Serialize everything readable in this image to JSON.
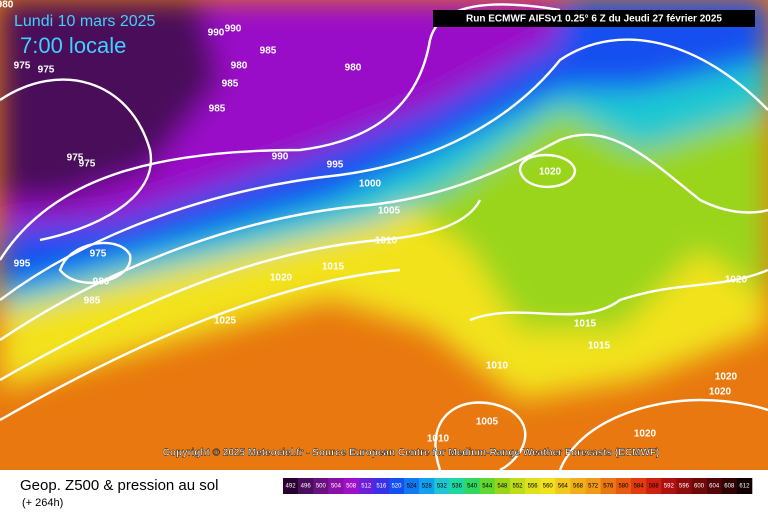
{
  "header": {
    "date": "Lundi 10 mars 2025",
    "time": "7:00 locale",
    "run": "Run ECMWF AIFSv1 0.25° 6 Z du Jeudi 27 février 2025"
  },
  "copyright": "Copyright © 2025 Meteociel.fr - Source European Centre for Medium-Range Weather Forecasts (ECMWF)",
  "footer": {
    "title": "Geop. Z500 & pression au sol",
    "lead": "(+ 264h)"
  },
  "isobar_labels": [
    "980",
    "990",
    "990",
    "985",
    "975",
    "975",
    "980",
    "985",
    "985",
    "980",
    "975",
    "975",
    "990",
    "995",
    "1000",
    "1005",
    "1010",
    "1015",
    "1020",
    "1025",
    "995",
    "975",
    "980",
    "985",
    "1020",
    "1015",
    "1015",
    "1010",
    "1005",
    "1010",
    "1020",
    "1020",
    "1020",
    "1020"
  ],
  "colorbar": {
    "labels": [
      492,
      496,
      500,
      504,
      508,
      512,
      516,
      520,
      524,
      528,
      532,
      536,
      540,
      544,
      548,
      552,
      556,
      560,
      564,
      568,
      572,
      576,
      580,
      584,
      588,
      592,
      596,
      600,
      604,
      608,
      612
    ],
    "colors": [
      "#2a0030",
      "#4a0f5a",
      "#6a1080",
      "#8a10a8",
      "#a010c8",
      "#6a20d8",
      "#3a30e8",
      "#1450f0",
      "#1478f0",
      "#14a0f0",
      "#1ec8d2",
      "#1ed8a0",
      "#30d860",
      "#60d830",
      "#9ad51a",
      "#c0dc1a",
      "#e0e01e",
      "#f2e21e",
      "#f2c81e",
      "#f0b01a",
      "#f09a18",
      "#e8780f",
      "#e85a10",
      "#e03c10",
      "#d02010",
      "#b01010",
      "#900c0c",
      "#700808",
      "#500606",
      "#300404",
      "#100000"
    ]
  }
}
